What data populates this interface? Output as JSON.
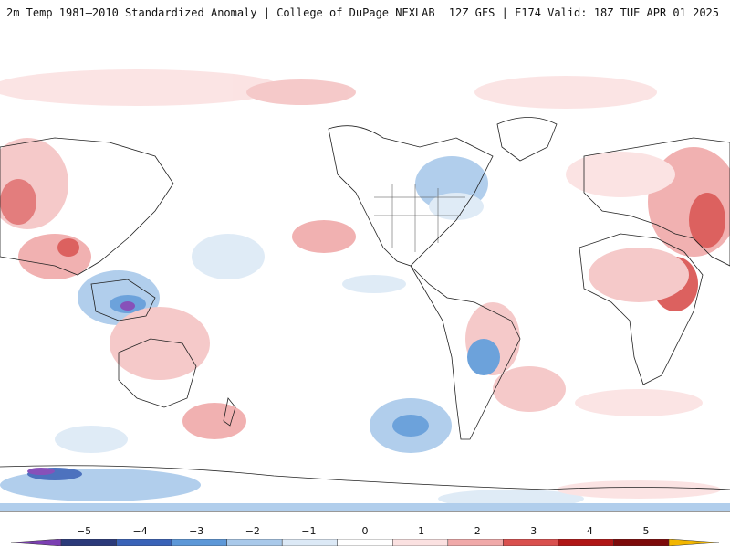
{
  "header": {
    "title_left": "2m Temp 1981–2010 Standardized Anomaly | College of DuPage NEXLAB",
    "title_right": "12Z GFS | F174 Valid: 18Z TUE APR 01 2025"
  },
  "colorbar": {
    "labels": [
      "−5",
      "−4",
      "−3",
      "−2",
      "−1",
      "0",
      "1",
      "2",
      "3",
      "4",
      "5"
    ],
    "colors": [
      "#7b3fb2",
      "#2b3a7a",
      "#3a63b8",
      "#5d98d8",
      "#a9c9ea",
      "#dce9f6",
      "#ffffff",
      "#fbe1e1",
      "#f0a9a9",
      "#d9504e",
      "#b01616",
      "#7d0a0a",
      "#f2b600"
    ]
  }
}
